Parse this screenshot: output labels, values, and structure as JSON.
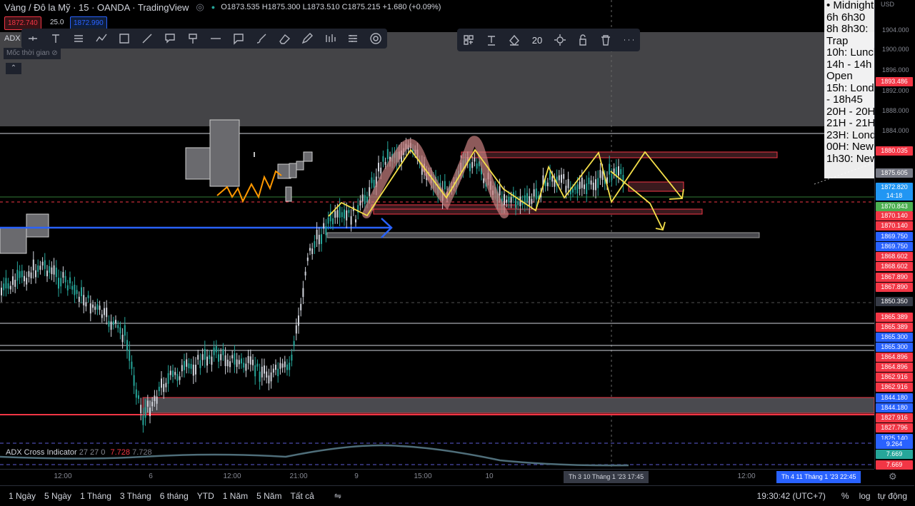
{
  "header": {
    "title": "Vàng / Đô la Mỹ · 15 · OANDA · TradingView",
    "ohlc": "O1873.535  H1875.300  L1873.510  C1875.215  +1.680 (+0.09%)",
    "sell_price": "1872.740",
    "spread": "25.0",
    "buy_price": "1872.990",
    "indicator_short": "ADX",
    "session_label": "Mốc thời gian"
  },
  "drawing_toolbar": {
    "icons": [
      "pen-icon",
      "text-icon",
      "fib-icon",
      "path-icon",
      "rectangle-icon",
      "line-icon",
      "callout-icon",
      "marker-icon",
      "horizontal-line-icon",
      "note-icon",
      "brush-icon",
      "eraser-icon",
      "pencil-icon",
      "bars-icon",
      "settings-lines-icon",
      "target-icon"
    ]
  },
  "style_toolbar": {
    "font_size": "20",
    "icons": [
      "group-icon",
      "text-color-icon",
      "fill-icon",
      "gear-icon",
      "lock-icon",
      "trash-icon",
      "more-icon"
    ]
  },
  "price_axis": {
    "currency": "USD",
    "ticks": [
      "1904.000",
      "1900.000",
      "1896.000",
      "1892.000",
      "1888.000",
      "1884.000"
    ],
    "labels": [
      {
        "text": "1893.486",
        "color": "#f23645"
      },
      {
        "text": "1880.035",
        "color": "#f23645"
      },
      {
        "text": "1875.605",
        "color": "#787b86"
      },
      {
        "text": "1872.820",
        "color": "#2196f3"
      },
      {
        "text": "14:18",
        "color": "#2196f3"
      },
      {
        "text": "1870.843",
        "color": "#4caf50"
      },
      {
        "text": "1870.140",
        "color": "#f23645"
      },
      {
        "text": "1870.140",
        "color": "#f23645"
      },
      {
        "text": "1869.750",
        "color": "#2962ff"
      },
      {
        "text": "1869.750",
        "color": "#2962ff"
      },
      {
        "text": "1868.602",
        "color": "#f23645"
      },
      {
        "text": "1868.602",
        "color": "#f23645"
      },
      {
        "text": "1867.890",
        "color": "#f23645"
      },
      {
        "text": "1867.890",
        "color": "#f23645"
      },
      {
        "text": "1850.350",
        "color": "#363a45"
      },
      {
        "text": "1865.389",
        "color": "#f23645"
      },
      {
        "text": "1865.389",
        "color": "#f23645"
      },
      {
        "text": "1865.300",
        "color": "#2962ff"
      },
      {
        "text": "1865.300",
        "color": "#2962ff"
      },
      {
        "text": "1864.896",
        "color": "#f23645"
      },
      {
        "text": "1864.896",
        "color": "#f23645"
      },
      {
        "text": "1862.916",
        "color": "#f23645"
      },
      {
        "text": "1862.916",
        "color": "#f23645"
      },
      {
        "text": "1844.180",
        "color": "#2962ff"
      },
      {
        "text": "1844.180",
        "color": "#2962ff"
      },
      {
        "text": "1827.916",
        "color": "#f23645"
      },
      {
        "text": "1827.796",
        "color": "#f23645"
      },
      {
        "text": "1825.140",
        "color": "#2962ff"
      },
      {
        "text": "9.264",
        "color": "#2962ff"
      },
      {
        "text": "7.669",
        "color": "#26a69a"
      },
      {
        "text": "7.669",
        "color": "#f23645"
      }
    ]
  },
  "session_panel": {
    "lines": [
      "• Midnight",
      "6h 6h30",
      "8h 8h30:",
      "Trap",
      "10h: Lunch",
      "14h - 14h",
      "Open",
      "15h: Lond",
      "- 18h45",
      "20H - 20H",
      "21H - 21H",
      "23H: Lond",
      "00H: New",
      "1h30: New"
    ]
  },
  "indicator": {
    "name": "ADX Cross Indicator",
    "params": "27 27 0",
    "val1": "7.728",
    "val2": "7.728"
  },
  "time_axis": {
    "ticks": [
      {
        "label": "12:00"
      },
      {
        "label": "6"
      },
      {
        "label": "12:00"
      },
      {
        "label": "21:00"
      },
      {
        "label": "9"
      },
      {
        "label": "15:00"
      },
      {
        "label": "10"
      },
      {
        "label": "12:00"
      }
    ],
    "crosshair_label": "Th 3 10 Tháng 1 '23   17:45",
    "current_label": "Th 4 11 Tháng 1 '23   22:45"
  },
  "bottom_bar": {
    "ranges": [
      "1 Ngày",
      "5 Ngày",
      "1 Tháng",
      "3 Tháng",
      "6 tháng",
      "YTD",
      "1 Năm",
      "5 Năm",
      "Tất cả"
    ],
    "clock": "19:30:42 (UTC+7)",
    "percent": "%",
    "log": "log",
    "auto": "tự động"
  },
  "colors": {
    "up": "#26a69a",
    "zone_red": "#f23645",
    "arrow_blue": "#2962ff",
    "yellow": "#f5e04a",
    "orange": "#ff9800",
    "pink": "#c98080"
  }
}
